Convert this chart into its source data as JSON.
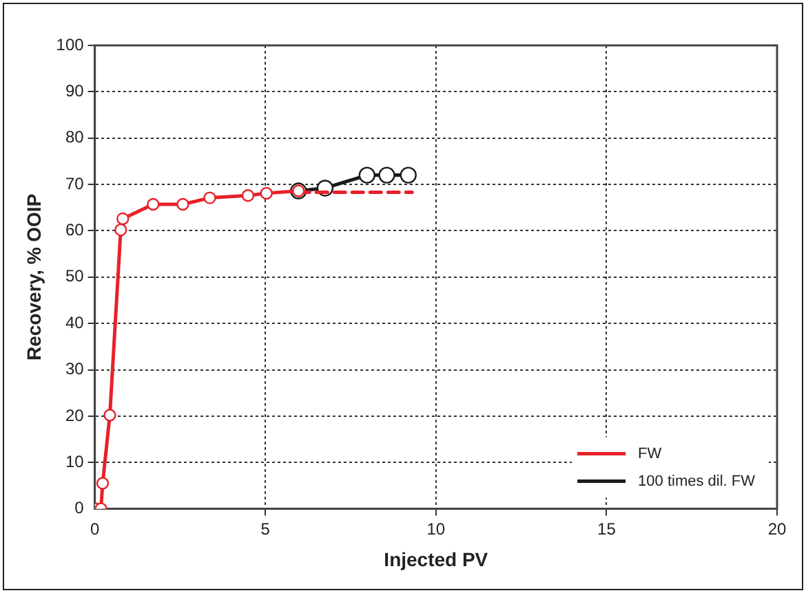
{
  "chart_data": {
    "type": "line",
    "xlabel": "Injected PV",
    "ylabel": "Recovery, % OOIP",
    "xlim": [
      0,
      20
    ],
    "xticks": [
      0,
      5,
      10,
      15,
      20
    ],
    "ylim": [
      0,
      100
    ],
    "yticks": [
      0,
      10,
      20,
      30,
      40,
      50,
      60,
      70,
      80,
      90,
      100
    ],
    "grid": true,
    "legend": "bottom right",
    "marker": "circle",
    "series": [
      {
        "name": "FW",
        "color": "#e8202a",
        "x": [
          0.05,
          0.18,
          0.23,
          0.44,
          0.76,
          0.82,
          1.71,
          2.58,
          3.37,
          4.49,
          5.03,
          5.97
        ],
        "values": [
          0,
          0,
          5.5,
          20.2,
          60.2,
          62.6,
          65.7,
          65.7,
          67.1,
          67.6,
          68.1,
          68.6
        ]
      },
      {
        "color": "#e8202a",
        "line_style": "dashed",
        "marker": "none",
        "x": [
          5.97,
          9.3
        ],
        "values": [
          68.3,
          68.3
        ]
      },
      {
        "name": "100 times dil. FW",
        "color": "#1a1a1a",
        "x": [
          5.97,
          6.75,
          7.98,
          8.56,
          9.19
        ],
        "values": [
          68.6,
          69.2,
          72.0,
          72.0,
          72.0
        ]
      }
    ]
  }
}
